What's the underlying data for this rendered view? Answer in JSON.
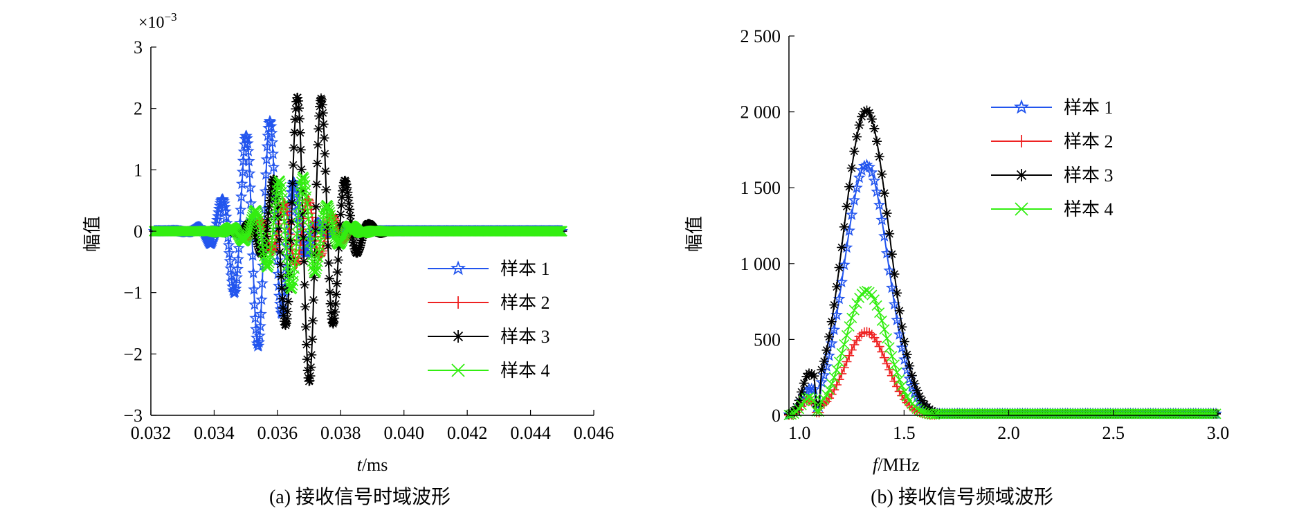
{
  "chart_data": [
    {
      "type": "line",
      "xlabel_var": "t",
      "xlabel_unit": "/ms",
      "ylabel": "幅值",
      "exponent_label": "×10",
      "exponent_power": "−3",
      "caption": "(a) 接收信号时域波形",
      "xlim": [
        0.032,
        0.046
      ],
      "ylim": [
        -3,
        3
      ],
      "xticks": [
        0.032,
        0.034,
        0.036,
        0.038,
        0.04,
        0.042,
        0.044,
        0.046
      ],
      "xtick_labels": [
        "0.032",
        "0.034",
        "0.036",
        "0.038",
        "0.040",
        "0.042",
        "0.044",
        "0.046"
      ],
      "yticks": [
        -3,
        -2,
        -1,
        0,
        1,
        2,
        3
      ],
      "ytick_labels": [
        "−3",
        "−2",
        "−1",
        "0",
        "1",
        "2",
        "3"
      ],
      "legend_position": "lower-right",
      "series": [
        {
          "name": "样本 1",
          "color": "#2255ee",
          "marker": "star",
          "center": 0.0355,
          "width": 0.0011,
          "peak": 1.9,
          "freq": 1300,
          "start": 0.0325,
          "end": 0.039
        },
        {
          "name": "样本 2",
          "color": "#ee2222",
          "marker": "plus",
          "center": 0.0367,
          "width": 0.0012,
          "peak": 0.55,
          "freq": 1300,
          "start": 0.033,
          "end": 0.0395
        },
        {
          "name": "样本 3",
          "color": "#000000",
          "marker": "asterisk",
          "center": 0.037,
          "width": 0.0011,
          "peak": 2.45,
          "freq": 1300,
          "start": 0.0335,
          "end": 0.04
        },
        {
          "name": "样本 4",
          "color": "#33ee11",
          "marker": "x",
          "center": 0.0365,
          "width": 0.0012,
          "peak": 0.95,
          "freq": 1300,
          "start": 0.033,
          "end": 0.041
        }
      ],
      "tail_end": 0.045
    },
    {
      "type": "line",
      "xlabel_var": "f",
      "xlabel_unit": "/MHz",
      "ylabel": "幅值",
      "caption": "(b) 接收信号频域波形",
      "xlim": [
        0.95,
        3.0
      ],
      "ylim": [
        0,
        2500
      ],
      "xticks": [
        1.0,
        1.5,
        2.0,
        2.5,
        3.0
      ],
      "xtick_labels": [
        "1.0",
        "1.5",
        "2.0",
        "2.5",
        "3.0"
      ],
      "yticks": [
        0,
        500,
        1000,
        1500,
        2000,
        2500
      ],
      "ytick_labels": [
        "0",
        "500",
        "1 000",
        "1 500",
        "2 000",
        "2 500"
      ],
      "legend_position": "upper-right",
      "series": [
        {
          "name": "样本 1",
          "color": "#2255ee",
          "marker": "star",
          "peak": 1650,
          "center": 1.32,
          "sigma": 0.105,
          "bump": 120
        },
        {
          "name": "样本 2",
          "color": "#ee2222",
          "marker": "plus",
          "peak": 550,
          "center": 1.32,
          "sigma": 0.1,
          "bump": 90
        },
        {
          "name": "样本 3",
          "color": "#000000",
          "marker": "asterisk",
          "peak": 2010,
          "center": 1.32,
          "sigma": 0.108,
          "bump": 200
        },
        {
          "name": "样本 4",
          "color": "#33ee11",
          "marker": "x",
          "peak": 820,
          "center": 1.32,
          "sigma": 0.1,
          "bump": 100
        }
      ],
      "x_start": 0.95,
      "x_end": 3.0
    }
  ]
}
